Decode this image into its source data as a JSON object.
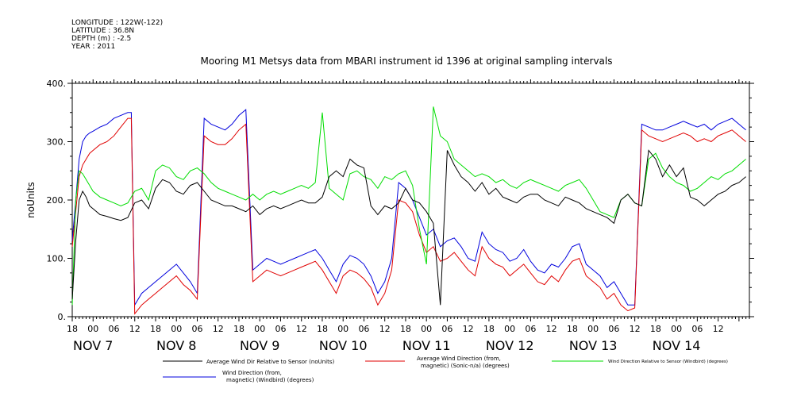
{
  "meta": {
    "longitude": "LONGITUDE : 122W(-122)",
    "latitude": "LATITUDE : 36.8N",
    "depth": "DEPTH (m) : -2.5",
    "year": "YEAR : 2011"
  },
  "colors": {
    "black": "#000000",
    "red": "#e00000",
    "green": "#00dd00",
    "blue": "#0000dd"
  },
  "chart_data": {
    "type": "line",
    "title": "Mooring M1 Metsys data from MBARI instrument id 1396 at original sampling intervals",
    "ylabel": "noUnits",
    "xlabel": "",
    "ylim": [
      0,
      400
    ],
    "y_ticks": [
      "0.",
      "100.",
      "200.",
      "300.",
      "400."
    ],
    "x_unit": "hours since NOV 6 18:00",
    "xlim": [
      0,
      195
    ],
    "x_tick_labels": [
      "18",
      "00",
      "06",
      "12",
      "18",
      "00",
      "06",
      "12",
      "18",
      "00",
      "06",
      "12",
      "18",
      "00",
      "06",
      "12",
      "18",
      "00",
      "06",
      "12",
      "18",
      "00",
      "06",
      "12",
      "18",
      "00",
      "06",
      "12",
      "18",
      "00",
      "06",
      "12"
    ],
    "day_labels": [
      {
        "label": "NOV  7",
        "x": 6
      },
      {
        "label": "NOV  8",
        "x": 30
      },
      {
        "label": "NOV  9",
        "x": 54
      },
      {
        "label": "NOV 10",
        "x": 78
      },
      {
        "label": "NOV 11",
        "x": 102
      },
      {
        "label": "NOV 12",
        "x": 126
      },
      {
        "label": "NOV 13",
        "x": 150
      },
      {
        "label": "NOV 14",
        "x": 174
      }
    ],
    "series": [
      {
        "name": "Average Wind Dir Relative to Sensor (noUnits)",
        "color": "#000000",
        "x": [
          0,
          1,
          2,
          3,
          4,
          5,
          6,
          8,
          10,
          12,
          14,
          16,
          18,
          20,
          22,
          24,
          26,
          28,
          30,
          32,
          34,
          36,
          38,
          40,
          42,
          44,
          46,
          48,
          50,
          52,
          54,
          56,
          58,
          60,
          62,
          64,
          66,
          68,
          70,
          72,
          74,
          76,
          78,
          80,
          82,
          84,
          86,
          88,
          90,
          92,
          94,
          96,
          98,
          100,
          102,
          104,
          106,
          108,
          110,
          112,
          114,
          116,
          118,
          120,
          122,
          124,
          126,
          128,
          130,
          132,
          134,
          136,
          138,
          140,
          142,
          144,
          146,
          148,
          150,
          152,
          154,
          156,
          158,
          160,
          162,
          164,
          166,
          168,
          170,
          172,
          174,
          176,
          178,
          180,
          182,
          184,
          186,
          188,
          190,
          192,
          194
        ],
        "y": [
          30,
          130,
          200,
          215,
          205,
          190,
          185,
          175,
          172,
          168,
          165,
          170,
          195,
          200,
          185,
          220,
          235,
          230,
          215,
          210,
          225,
          230,
          215,
          200,
          195,
          190,
          190,
          185,
          180,
          190,
          175,
          185,
          190,
          185,
          190,
          195,
          200,
          195,
          195,
          205,
          240,
          250,
          240,
          270,
          260,
          255,
          190,
          175,
          190,
          185,
          195,
          220,
          200,
          195,
          180,
          160,
          20,
          285,
          260,
          240,
          230,
          215,
          230,
          210,
          220,
          205,
          200,
          195,
          205,
          210,
          210,
          200,
          195,
          190,
          205,
          200,
          195,
          185,
          180,
          175,
          170,
          160,
          200,
          210,
          195,
          190,
          285,
          270,
          240,
          260,
          240,
          255,
          205,
          200,
          190,
          200,
          210,
          215,
          225,
          230,
          240
        ]
      },
      {
        "name": "Average Wind Direction (from, magnetic) (Sonic-n/a) (degrees)",
        "color": "#e00000",
        "x": [
          0,
          1,
          2,
          3,
          4,
          5,
          6,
          8,
          10,
          12,
          14,
          16,
          17,
          18,
          20,
          22,
          24,
          26,
          28,
          30,
          32,
          34,
          36,
          38,
          40,
          42,
          44,
          46,
          48,
          50,
          52,
          54,
          56,
          58,
          60,
          62,
          64,
          66,
          68,
          70,
          72,
          74,
          76,
          78,
          80,
          82,
          84,
          86,
          88,
          90,
          92,
          94,
          96,
          98,
          100,
          102,
          104,
          106,
          108,
          110,
          112,
          114,
          116,
          118,
          120,
          122,
          124,
          126,
          128,
          130,
          132,
          134,
          136,
          138,
          140,
          142,
          144,
          146,
          148,
          150,
          152,
          154,
          156,
          158,
          160,
          162,
          164,
          166,
          168,
          170,
          172,
          174,
          176,
          178,
          180,
          182,
          184,
          186,
          188,
          190,
          192,
          194
        ],
        "y": [
          120,
          180,
          240,
          260,
          270,
          280,
          285,
          295,
          300,
          310,
          325,
          340,
          340,
          5,
          20,
          30,
          40,
          50,
          60,
          70,
          55,
          45,
          30,
          310,
          300,
          295,
          295,
          305,
          320,
          330,
          60,
          70,
          80,
          75,
          70,
          75,
          80,
          85,
          90,
          95,
          80,
          60,
          40,
          70,
          80,
          75,
          65,
          50,
          20,
          40,
          80,
          200,
          195,
          180,
          140,
          110,
          120,
          95,
          100,
          110,
          95,
          80,
          70,
          120,
          100,
          90,
          85,
          70,
          80,
          90,
          75,
          60,
          55,
          70,
          60,
          80,
          95,
          100,
          70,
          60,
          50,
          30,
          40,
          20,
          10,
          15,
          320,
          310,
          305,
          300,
          305,
          310,
          315,
          310,
          300,
          305,
          300,
          310,
          315,
          320,
          310,
          300
        ]
      },
      {
        "name": "Wind Direction Relative to Sensor (Windbird) (degrees)",
        "color": "#00dd00",
        "x": [
          0,
          1,
          2,
          3,
          4,
          5,
          6,
          8,
          10,
          12,
          14,
          16,
          18,
          20,
          22,
          24,
          26,
          28,
          30,
          32,
          34,
          36,
          38,
          40,
          42,
          44,
          46,
          48,
          50,
          52,
          54,
          56,
          58,
          60,
          62,
          64,
          66,
          68,
          70,
          72,
          74,
          76,
          78,
          80,
          82,
          84,
          86,
          88,
          90,
          92,
          94,
          96,
          98,
          100,
          102,
          104,
          106,
          108,
          110,
          112,
          114,
          116,
          118,
          120,
          122,
          124,
          126,
          128,
          130,
          132,
          134,
          136,
          138,
          140,
          142,
          144,
          146,
          148,
          150,
          152,
          154,
          156,
          158,
          160,
          162,
          164,
          166,
          168,
          170,
          172,
          174,
          176,
          178,
          180,
          182,
          184,
          186,
          188,
          190,
          192,
          194
        ],
        "y": [
          20,
          200,
          250,
          245,
          235,
          225,
          215,
          205,
          200,
          195,
          190,
          195,
          215,
          220,
          200,
          250,
          260,
          255,
          240,
          235,
          250,
          255,
          245,
          230,
          220,
          215,
          210,
          205,
          200,
          210,
          200,
          210,
          215,
          210,
          215,
          220,
          225,
          220,
          230,
          350,
          220,
          210,
          200,
          245,
          250,
          240,
          235,
          220,
          240,
          235,
          245,
          250,
          225,
          150,
          90,
          360,
          310,
          300,
          270,
          260,
          250,
          240,
          245,
          240,
          230,
          235,
          225,
          220,
          230,
          235,
          230,
          225,
          220,
          215,
          225,
          230,
          235,
          220,
          200,
          180,
          175,
          170,
          200,
          210,
          195,
          190,
          270,
          280,
          255,
          240,
          230,
          225,
          215,
          220,
          230,
          240,
          235,
          245,
          250,
          260,
          270
        ]
      },
      {
        "name": "Wind Direction (from, magnetic) (Windbird) (degrees)",
        "color": "#0000dd",
        "x": [
          0,
          1,
          2,
          3,
          4,
          5,
          6,
          8,
          10,
          12,
          14,
          16,
          17,
          18,
          20,
          22,
          24,
          26,
          28,
          30,
          32,
          34,
          36,
          38,
          40,
          42,
          44,
          46,
          48,
          50,
          52,
          54,
          56,
          58,
          60,
          62,
          64,
          66,
          68,
          70,
          72,
          74,
          76,
          78,
          80,
          82,
          84,
          86,
          88,
          90,
          92,
          94,
          96,
          98,
          100,
          102,
          104,
          106,
          108,
          110,
          112,
          114,
          116,
          118,
          120,
          122,
          124,
          126,
          128,
          130,
          132,
          134,
          136,
          138,
          140,
          142,
          144,
          146,
          148,
          150,
          152,
          154,
          156,
          158,
          160,
          162,
          164,
          166,
          168,
          170,
          172,
          174,
          176,
          178,
          180,
          182,
          184,
          186,
          188,
          190,
          192,
          194
        ],
        "y": [
          130,
          200,
          270,
          300,
          310,
          315,
          318,
          325,
          330,
          340,
          345,
          350,
          350,
          20,
          40,
          50,
          60,
          70,
          80,
          90,
          75,
          60,
          40,
          340,
          330,
          325,
          320,
          330,
          345,
          355,
          80,
          90,
          100,
          95,
          90,
          95,
          100,
          105,
          110,
          115,
          100,
          80,
          60,
          90,
          105,
          100,
          90,
          70,
          40,
          60,
          100,
          230,
          220,
          200,
          170,
          140,
          150,
          120,
          130,
          135,
          120,
          100,
          95,
          145,
          125,
          115,
          110,
          95,
          100,
          115,
          95,
          80,
          75,
          90,
          85,
          100,
          120,
          125,
          90,
          80,
          70,
          50,
          60,
          40,
          20,
          20,
          330,
          325,
          320,
          320,
          325,
          330,
          335,
          330,
          325,
          330,
          320,
          330,
          335,
          340,
          330,
          320
        ]
      }
    ],
    "legend": [
      {
        "label_line1": "Average Wind Dir Relative to Sensor (noUnits)",
        "label_line2": ""
      },
      {
        "label_line1": "Average Wind Direction (from,",
        "label_line2": "magnetic) (Sonic-n/a) (degrees)"
      },
      {
        "label_line1": "Wind Direction Relative to Sensor (Windbird) (degrees)",
        "label_line2": ""
      },
      {
        "label_line1": "Wind Direction (from,",
        "label_line2": "magnetic) (Windbird) (degrees)"
      }
    ]
  }
}
